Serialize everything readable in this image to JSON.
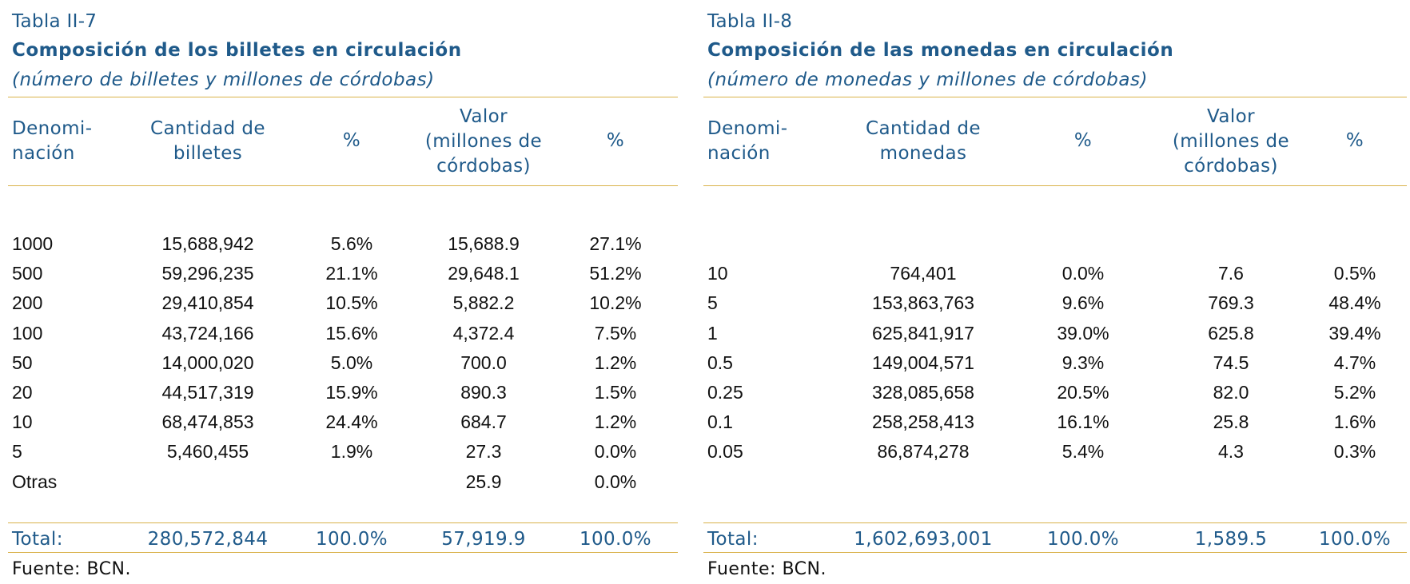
{
  "left_table": {
    "label": "Tabla II-7",
    "title": "Composición de los billetes en circulación",
    "subtitle": "(número de billetes y millones de córdobas)",
    "headers": {
      "denom": "Denomi-\nnación",
      "qty": "Cantidad de\nbilletes",
      "pct1": "%",
      "value": "Valor\n(millones de\ncórdobas)",
      "pct2": "%"
    },
    "rows": [
      {
        "denom": "1000",
        "qty": "15,688,942",
        "pct1": "5.6%",
        "value": "15,688.9",
        "pct2": "27.1%"
      },
      {
        "denom": "500",
        "qty": "59,296,235",
        "pct1": "21.1%",
        "value": "29,648.1",
        "pct2": "51.2%"
      },
      {
        "denom": "200",
        "qty": "29,410,854",
        "pct1": "10.5%",
        "value": "5,882.2",
        "pct2": "10.2%"
      },
      {
        "denom": "100",
        "qty": "43,724,166",
        "pct1": "15.6%",
        "value": "4,372.4",
        "pct2": "7.5%"
      },
      {
        "denom": "50",
        "qty": "14,000,020",
        "pct1": "5.0%",
        "value": "700.0",
        "pct2": "1.2%"
      },
      {
        "denom": "20",
        "qty": "44,517,319",
        "pct1": "15.9%",
        "value": "890.3",
        "pct2": "1.5%"
      },
      {
        "denom": "10",
        "qty": "68,474,853",
        "pct1": "24.4%",
        "value": "684.7",
        "pct2": "1.2%"
      },
      {
        "denom": "5",
        "qty": "5,460,455",
        "pct1": "1.9%",
        "value": "27.3",
        "pct2": "0.0%"
      },
      {
        "denom": "Otras",
        "qty": "",
        "pct1": "",
        "value": "25.9",
        "pct2": "0.0%"
      }
    ],
    "total": {
      "label": "Total:",
      "qty": "280,572,844",
      "pct1": "100.0%",
      "value": "57,919.9",
      "pct2": "100.0%"
    },
    "source": "Fuente: BCN."
  },
  "right_table": {
    "label": "Tabla II-8",
    "title": "Composición de las monedas en circulación",
    "subtitle": "(número de monedas y millones de córdobas)",
    "headers": {
      "denom": "Denomi-\nnación",
      "qty": "Cantidad de\nmonedas",
      "pct1": "%",
      "value": "Valor\n(millones de\ncórdobas)",
      "pct2": "%"
    },
    "rows": [
      {
        "denom": "",
        "qty": "",
        "pct1": "",
        "value": "",
        "pct2": ""
      },
      {
        "denom": "10",
        "qty": "764,401",
        "pct1": "0.0%",
        "value": "7.6",
        "pct2": "0.5%"
      },
      {
        "denom": "5",
        "qty": "153,863,763",
        "pct1": "9.6%",
        "value": "769.3",
        "pct2": "48.4%"
      },
      {
        "denom": "1",
        "qty": "625,841,917",
        "pct1": "39.0%",
        "value": "625.8",
        "pct2": "39.4%"
      },
      {
        "denom": "0.5",
        "qty": "149,004,571",
        "pct1": "9.3%",
        "value": "74.5",
        "pct2": "4.7%"
      },
      {
        "denom": "0.25",
        "qty": "328,085,658",
        "pct1": "20.5%",
        "value": "82.0",
        "pct2": "5.2%"
      },
      {
        "denom": "0.1",
        "qty": "258,258,413",
        "pct1": "16.1%",
        "value": "25.8",
        "pct2": "1.6%"
      },
      {
        "denom": "0.05",
        "qty": "86,874,278",
        "pct1": "5.4%",
        "value": "4.3",
        "pct2": "0.3%"
      }
    ],
    "total": {
      "label": "Total:",
      "qty": "1,602,693,001",
      "pct1": "100.0%",
      "value": "1,589.5",
      "pct2": "100.0%"
    },
    "source": "Fuente: BCN."
  }
}
